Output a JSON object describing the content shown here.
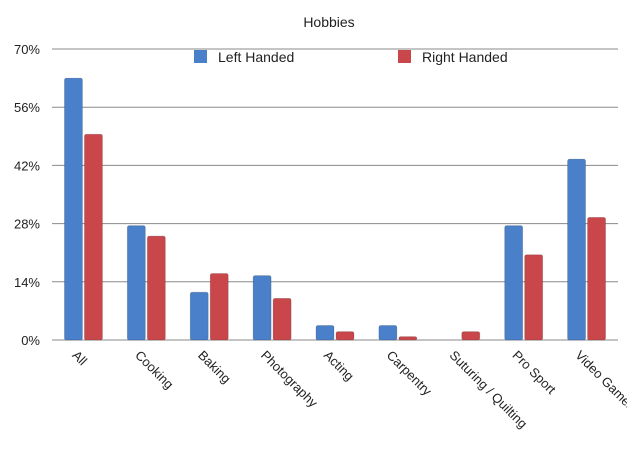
{
  "chart_data": {
    "type": "bar",
    "title": "Hobbies",
    "categories": [
      "All",
      "Cooking",
      "Baking",
      "Photography",
      "Acting",
      "Carpentry",
      "Suturing / Quilting",
      "Pro Sport",
      "Video Games"
    ],
    "series": [
      {
        "name": "Left Handed",
        "color": "#4a7fc9",
        "values": [
          63,
          27.5,
          11.5,
          15.5,
          3.5,
          3.5,
          0,
          27.5,
          43.5
        ]
      },
      {
        "name": "Right Handed",
        "color": "#c9474b",
        "values": [
          49.5,
          25,
          16,
          10,
          2,
          0.8,
          2,
          20.5,
          29.5
        ]
      }
    ],
    "ylim": [
      0,
      70
    ],
    "yticks": [
      "0%",
      "14%",
      "28%",
      "42%",
      "56%",
      "70%"
    ],
    "ytick_values": [
      0,
      14,
      28,
      42,
      56,
      70
    ],
    "grid": true,
    "legend_position": "top"
  }
}
